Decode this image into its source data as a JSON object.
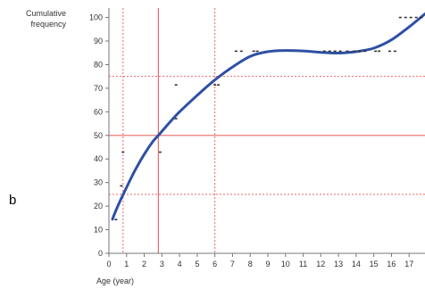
{
  "chart_data": {
    "type": "scatter",
    "panel_label": "b",
    "ylabel": [
      "Cumulative",
      "frequency"
    ],
    "xlabel": "Age (year)",
    "xlim": [
      0,
      17.9
    ],
    "ylim": [
      0,
      104
    ],
    "x_ticks": [
      0,
      1,
      2,
      3,
      4,
      5,
      6,
      7,
      8,
      9,
      10,
      11,
      12,
      13,
      14,
      15,
      16,
      17
    ],
    "y_ticks": [
      0,
      10,
      20,
      30,
      40,
      50,
      60,
      70,
      80,
      90,
      100
    ],
    "grid": false,
    "colors": {
      "curve": "#2e50a4",
      "reference_lines": "#e86a6a",
      "points": "#333333",
      "axis": "#777777"
    },
    "points": [
      {
        "x": 0.4,
        "y": 14.3
      },
      {
        "x": 0.7,
        "y": 28.6
      },
      {
        "x": 0.8,
        "y": 42.9
      },
      {
        "x": 2.9,
        "y": 42.9
      },
      {
        "x": 3.8,
        "y": 57.1
      },
      {
        "x": 3.8,
        "y": 71.4
      },
      {
        "x": 6.0,
        "y": 71.4
      },
      {
        "x": 6.2,
        "y": 71.4
      },
      {
        "x": 7.2,
        "y": 85.7
      },
      {
        "x": 7.5,
        "y": 85.7
      },
      {
        "x": 8.2,
        "y": 85.7
      },
      {
        "x": 8.4,
        "y": 85.7
      },
      {
        "x": 12.2,
        "y": 85.7
      },
      {
        "x": 12.5,
        "y": 85.7
      },
      {
        "x": 12.8,
        "y": 85.7
      },
      {
        "x": 13.1,
        "y": 85.7
      },
      {
        "x": 13.5,
        "y": 85.7
      },
      {
        "x": 13.9,
        "y": 85.7
      },
      {
        "x": 14.2,
        "y": 85.7
      },
      {
        "x": 14.5,
        "y": 85.7
      },
      {
        "x": 15.1,
        "y": 85.7
      },
      {
        "x": 15.3,
        "y": 85.7
      },
      {
        "x": 15.9,
        "y": 85.7
      },
      {
        "x": 16.2,
        "y": 85.7
      },
      {
        "x": 16.5,
        "y": 100
      },
      {
        "x": 16.8,
        "y": 100
      },
      {
        "x": 17.1,
        "y": 100
      },
      {
        "x": 17.4,
        "y": 100
      },
      {
        "x": 17.7,
        "y": 100
      }
    ],
    "fitted_curve": {
      "x": [
        0.2,
        0.5,
        1.0,
        1.5,
        2.0,
        2.5,
        2.8,
        3.5,
        4.0,
        5.0,
        6.0,
        7.0,
        8.0,
        9.0,
        10.0,
        11.0,
        12.0,
        13.0,
        14.0,
        15.0,
        16.0,
        17.0,
        17.9
      ],
      "y": [
        14.5,
        20.0,
        28.0,
        35.5,
        42.0,
        47.5,
        50.0,
        56.0,
        60.0,
        67.0,
        73.5,
        79.0,
        83.5,
        85.5,
        86.0,
        85.8,
        85.2,
        84.9,
        85.5,
        87.0,
        90.5,
        96.0,
        101.5
      ]
    },
    "reference_lines": {
      "horizontal_solid": [
        50
      ],
      "horizontal_dashed": [
        25,
        75
      ],
      "vertical_solid": [
        2.8
      ],
      "vertical_dashed": [
        0.8,
        6.0
      ]
    }
  }
}
